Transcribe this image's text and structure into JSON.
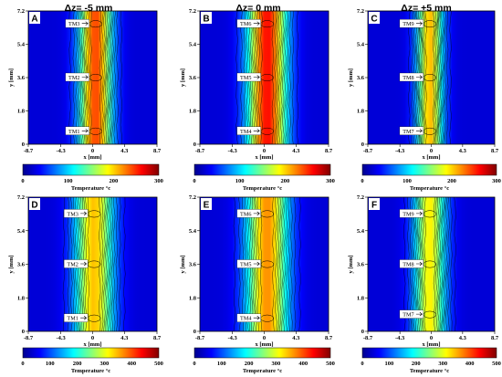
{
  "column_titles": [
    "Δz= -5 mm",
    "Δz= 0 mm",
    "Δz= +5 mm"
  ],
  "colors": {
    "colormap": [
      "#00008f",
      "#0000ff",
      "#0080ff",
      "#00ffff",
      "#80ff80",
      "#ffff00",
      "#ff8000",
      "#ff0000",
      "#800000"
    ],
    "contour_line": "#000000",
    "marker_box": "#ffffff"
  },
  "chart_data": [
    {
      "type": "heatmap",
      "panel": "A",
      "title": "",
      "xlabel": "x [mm]",
      "ylabel": "y [mm]",
      "xlim": [
        -8.7,
        8.7
      ],
      "ylim": [
        0,
        7.2
      ],
      "x_ticks": [
        "-8.7",
        "-4.3",
        "0",
        "4.3",
        "8.7"
      ],
      "y_ticks": [
        "0",
        "1.8",
        "3.6",
        "5.4",
        "7.2"
      ],
      "colorbar": {
        "label": "Temperature °c",
        "range": [
          0,
          300
        ],
        "ticks": [
          "0",
          "100",
          "200",
          "300"
        ]
      },
      "peak_temperature": 245,
      "hot_band_center_x": 0.4,
      "hot_band_width": 2.2,
      "markers": [
        {
          "label": "TM1",
          "y": 0.7
        },
        {
          "label": "TM2",
          "y": 3.6
        },
        {
          "label": "TM3",
          "y": 6.5
        }
      ]
    },
    {
      "type": "heatmap",
      "panel": "B",
      "title": "",
      "xlabel": "x [mm]",
      "ylabel": "y [mm]",
      "xlim": [
        -8.7,
        8.7
      ],
      "ylim": [
        0,
        7.2
      ],
      "x_ticks": [
        "-8.7",
        "-4.3",
        "0",
        "4.3",
        "8.7"
      ],
      "y_ticks": [
        "0",
        "1.8",
        "3.6",
        "5.4",
        "7.2"
      ],
      "colorbar": {
        "label": "Temperature °c",
        "range": [
          0,
          300
        ],
        "ticks": [
          "0",
          "100",
          "200",
          "300"
        ]
      },
      "peak_temperature": 262,
      "hot_band_center_x": 0.4,
      "hot_band_width": 2.6,
      "markers": [
        {
          "label": "TM4",
          "y": 0.7
        },
        {
          "label": "TM5",
          "y": 3.6
        },
        {
          "label": "TM6",
          "y": 6.5
        }
      ]
    },
    {
      "type": "heatmap",
      "panel": "C",
      "title": "",
      "xlabel": "x [mm]",
      "ylabel": "y [mm]",
      "xlim": [
        -8.7,
        8.7
      ],
      "ylim": [
        0,
        7.2
      ],
      "x_ticks": [
        "-8.7",
        "-4.3",
        "0",
        "4.3",
        "8.7"
      ],
      "y_ticks": [
        "0",
        "1.8",
        "3.6",
        "5.4",
        "7.2"
      ],
      "colorbar": {
        "label": "Temperature °c",
        "range": [
          0,
          300
        ],
        "ticks": [
          "0",
          "100",
          "200",
          "300"
        ]
      },
      "peak_temperature": 210,
      "hot_band_center_x": -0.2,
      "hot_band_width": 1.8,
      "markers": [
        {
          "label": "TM7",
          "y": 0.7
        },
        {
          "label": "TM8",
          "y": 3.6
        },
        {
          "label": "TM9",
          "y": 6.5
        }
      ]
    },
    {
      "type": "heatmap",
      "panel": "D",
      "title": "",
      "xlabel": "x [mm]",
      "ylabel": "y [mm]",
      "xlim": [
        -8.7,
        8.7
      ],
      "ylim": [
        0,
        7.2
      ],
      "x_ticks": [
        "-8.7",
        "-4.3",
        "0",
        "4.3",
        "8.7"
      ],
      "y_ticks": [
        "0",
        "1.8",
        "3.6",
        "5.4",
        "7.2"
      ],
      "colorbar": {
        "label": "Temperature °c",
        "range": [
          0,
          500
        ],
        "ticks": [
          "0",
          "100",
          "200",
          "300",
          "400",
          "500"
        ]
      },
      "peak_temperature": 345,
      "hot_band_center_x": 0.2,
      "hot_band_width": 2.6,
      "markers": [
        {
          "label": "TM1",
          "y": 0.7
        },
        {
          "label": "TM2",
          "y": 3.6
        },
        {
          "label": "TM3",
          "y": 6.3
        }
      ]
    },
    {
      "type": "heatmap",
      "panel": "E",
      "title": "",
      "xlabel": "x [mm]",
      "ylabel": "y [mm]",
      "xlim": [
        -8.7,
        8.7
      ],
      "ylim": [
        0,
        7.2
      ],
      "x_ticks": [
        "-8.7",
        "-4.3",
        "0",
        "4.3",
        "8.7"
      ],
      "y_ticks": [
        "0",
        "1.8",
        "3.6",
        "5.4",
        "7.2"
      ],
      "colorbar": {
        "label": "Temperature °c",
        "range": [
          0,
          500
        ],
        "ticks": [
          "0",
          "100",
          "200",
          "300",
          "400",
          "500"
        ]
      },
      "peak_temperature": 370,
      "hot_band_center_x": 0.4,
      "hot_band_width": 2.8,
      "markers": [
        {
          "label": "TM4",
          "y": 0.7
        },
        {
          "label": "TM5",
          "y": 3.6
        },
        {
          "label": "TM6",
          "y": 6.3
        }
      ]
    },
    {
      "type": "heatmap",
      "panel": "F",
      "title": "",
      "xlabel": "x [mm]",
      "ylabel": "y [mm]",
      "xlim": [
        -8.7,
        8.7
      ],
      "ylim": [
        0,
        7.2
      ],
      "x_ticks": [
        "-8.7",
        "-4.3",
        "0",
        "4.3",
        "8.7"
      ],
      "y_ticks": [
        "0",
        "1.8",
        "3.6",
        "5.4",
        "7.2"
      ],
      "colorbar": {
        "label": "Temperature °c",
        "range": [
          0,
          500
        ],
        "ticks": [
          "0",
          "100",
          "200",
          "300",
          "400",
          "500"
        ]
      },
      "peak_temperature": 320,
      "hot_band_center_x": -0.2,
      "hot_band_width": 2.2,
      "markers": [
        {
          "label": "TM7",
          "y": 0.9
        },
        {
          "label": "TM8",
          "y": 3.6
        },
        {
          "label": "TM9",
          "y": 6.3
        }
      ]
    }
  ]
}
